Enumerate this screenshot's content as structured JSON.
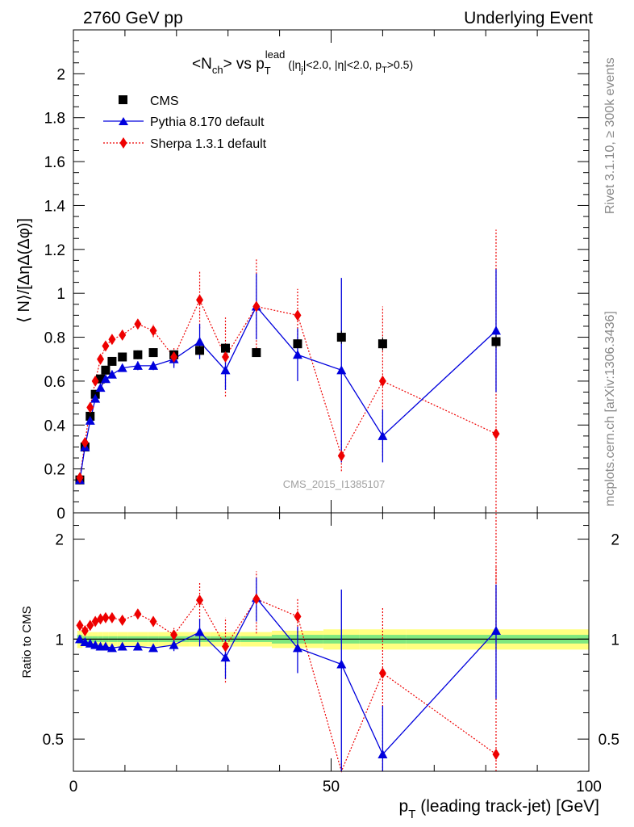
{
  "header": {
    "left": "2760 GeV pp",
    "right": "Underlying Event"
  },
  "title": {
    "part1": "<N",
    "part1_sub": "ch",
    "part2": "> vs p",
    "part2_sub": "T",
    "part2_sup": "lead",
    "cuts_1": " (|η",
    "cuts_1_sub": "j",
    "cuts_2": "|<2.0, |η|<2.0, p",
    "cuts_2_sub": "T",
    "cuts_3": ">0.5)"
  },
  "side_labels": {
    "rivet": "Rivet 3.1.10, ≥ 300k events",
    "mcplots": "mcplots.cern.ch [arXiv:1306.3436]"
  },
  "watermark": "CMS_2015_I1385107",
  "axes": {
    "ylabel_main": "⟨ N⟩/[ΔηΔ(Δφ)]",
    "ylabel_ratio": "Ratio to CMS",
    "xlabel_main": "p",
    "xlabel_sub": "T",
    "xlabel_rest": " (leading track-jet) [GeV]"
  },
  "legend": {
    "cms": "CMS",
    "pythia": "Pythia 8.170 default",
    "sherpa": "Sherpa 1.3.1 default"
  },
  "colors": {
    "cms": "#000000",
    "pythia": "#0000dd",
    "sherpa": "#ee0000",
    "band_outer": "#ffff80",
    "band_inner": "#7fe87f"
  },
  "chart_data": {
    "type": "scatter",
    "xlim": [
      0,
      100
    ],
    "ylim": [
      0,
      2.2
    ],
    "ratio_ylim": [
      0.4,
      2.4
    ],
    "ratio_scale": "log",
    "x_ticks": [
      0,
      50,
      100
    ],
    "y_ticks": [
      0,
      0.2,
      0.4,
      0.6,
      0.8,
      1,
      1.2,
      1.4,
      1.6,
      1.8,
      2
    ],
    "y_tick_labels": [
      "0",
      "0.2",
      "0.4",
      "0.6",
      "0.8",
      "1",
      "1.2",
      "1.4",
      "1.6",
      "1.8",
      "2"
    ],
    "ratio_ticks": [
      0.5,
      1,
      2
    ],
    "ratio_tick_labels": [
      "0.5",
      "1",
      "2"
    ],
    "x": [
      1.25,
      2.25,
      3.25,
      4.25,
      5.25,
      6.25,
      7.5,
      9.5,
      12.5,
      15.5,
      19.5,
      24.5,
      29.5,
      35.5,
      43.5,
      52,
      60,
      82
    ],
    "series": [
      {
        "name": "CMS",
        "y": [
          0.15,
          0.3,
          0.44,
          0.54,
          0.61,
          0.65,
          0.69,
          0.71,
          0.72,
          0.73,
          0.72,
          0.74,
          0.75,
          0.73,
          0.77,
          0.8,
          0.77,
          0.78
        ],
        "yerr": [
          0.02,
          0.02,
          0.02,
          0.02,
          0.02,
          0.02,
          0.02,
          0.02,
          0.02,
          0.02,
          0.02,
          0.02,
          0.02,
          0.02,
          0.02,
          0.03,
          0.03,
          0.03
        ]
      },
      {
        "name": "Pythia 8.170 default",
        "y": [
          0.15,
          0.3,
          0.42,
          0.52,
          0.57,
          0.61,
          0.63,
          0.66,
          0.67,
          0.67,
          0.7,
          0.78,
          0.65,
          0.94,
          0.72,
          0.65,
          0.35,
          0.83
        ],
        "yerr": [
          0.01,
          0.01,
          0.01,
          0.01,
          0.01,
          0.01,
          0.01,
          0.01,
          0.02,
          0.02,
          0.04,
          0.08,
          0.09,
          0.15,
          0.12,
          0.42,
          0.12,
          0.28
        ]
      },
      {
        "name": "Sherpa 1.3.1 default",
        "y": [
          0.16,
          0.32,
          0.48,
          0.6,
          0.7,
          0.76,
          0.79,
          0.81,
          0.86,
          0.83,
          0.71,
          0.97,
          0.71,
          0.94,
          0.9,
          0.26,
          0.6,
          0.36
        ],
        "yerr": [
          0.01,
          0.01,
          0.01,
          0.01,
          0.01,
          0.01,
          0.01,
          0.02,
          0.02,
          0.03,
          0.04,
          0.13,
          0.18,
          0.22,
          0.12,
          0.07,
          0.34,
          0.93
        ]
      }
    ],
    "ratio_series": [
      {
        "name": "Pythia 8.170 default",
        "y": [
          1.0,
          0.98,
          0.97,
          0.96,
          0.95,
          0.95,
          0.94,
          0.95,
          0.95,
          0.94,
          0.96,
          1.05,
          0.88,
          1.33,
          0.94,
          0.84,
          0.45,
          1.06
        ],
        "yerr": [
          0.01,
          0.01,
          0.01,
          0.01,
          0.01,
          0.01,
          0.01,
          0.01,
          0.02,
          0.02,
          0.04,
          0.1,
          0.12,
          0.2,
          0.15,
          0.57,
          0.18,
          0.4
        ]
      },
      {
        "name": "Sherpa 1.3.1 default",
        "y": [
          1.1,
          1.06,
          1.1,
          1.13,
          1.15,
          1.16,
          1.16,
          1.14,
          1.19,
          1.13,
          1.03,
          1.31,
          0.95,
          1.32,
          1.17,
          0.33,
          0.79,
          0.45
        ],
        "yerr": [
          0.01,
          0.01,
          0.01,
          0.01,
          0.01,
          0.01,
          0.01,
          0.02,
          0.03,
          0.04,
          0.05,
          0.17,
          0.21,
          0.28,
          0.15,
          0.1,
          0.45,
          1.2
        ]
      }
    ],
    "band_outer": [
      0.06,
      0.05,
      0.05,
      0.05,
      0.05,
      0.05,
      0.05,
      0.05,
      0.05,
      0.05,
      0.05,
      0.05,
      0.05,
      0.05,
      0.06,
      0.07,
      0.07,
      0.07
    ],
    "band_inner": [
      0.03,
      0.02,
      0.02,
      0.02,
      0.02,
      0.02,
      0.02,
      0.02,
      0.02,
      0.02,
      0.02,
      0.02,
      0.02,
      0.02,
      0.03,
      0.03,
      0.03,
      0.03
    ],
    "bin_edges": [
      0.75,
      1.75,
      2.75,
      3.75,
      4.75,
      5.75,
      6.75,
      8.5,
      10.5,
      14.5,
      16.5,
      22.5,
      26.5,
      32.5,
      38.5,
      48.5,
      55.5,
      64.5,
      100
    ]
  }
}
